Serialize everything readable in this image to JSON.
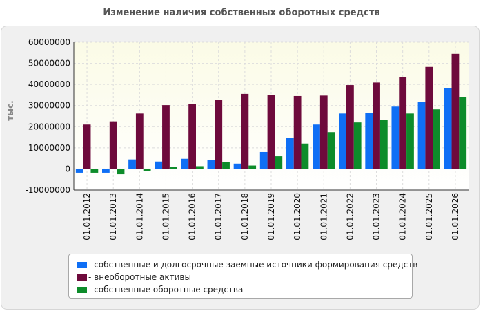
{
  "chart_data": {
    "type": "bar",
    "title": "Изменение наличия собственных оборотных средств",
    "ylabel": "тыс.",
    "xlabel": "",
    "ylim": [
      -10000000,
      60000000
    ],
    "yticks": [
      -10000000,
      0,
      10000000,
      20000000,
      30000000,
      40000000,
      50000000,
      60000000
    ],
    "grid": true,
    "legend_position": "bottom",
    "categories": [
      "01.01.2012",
      "01.01.2013",
      "01.01.2014",
      "01.01.2015",
      "01.01.2016",
      "01.01.2017",
      "01.01.2018",
      "01.01.2019",
      "01.01.2020",
      "01.01.2021",
      "01.01.2022",
      "01.01.2023",
      "01.01.2024",
      "01.01.2025",
      "01.01.2026"
    ],
    "series": [
      {
        "name": "- собственные и долгосрочные заемные источники формирования средств",
        "color": "#0f6ff5",
        "values": [
          -1800000,
          -1800000,
          4500000,
          3500000,
          4800000,
          4200000,
          2500000,
          8000000,
          14700000,
          21000000,
          26200000,
          26500000,
          29500000,
          31800000,
          38300000
        ]
      },
      {
        "name": "- внеоборотные активы",
        "color": "#6e0a3c",
        "values": [
          21000000,
          22500000,
          26200000,
          30200000,
          30700000,
          32800000,
          35500000,
          35000000,
          34500000,
          34700000,
          39700000,
          40900000,
          43500000,
          48300000,
          54500000
        ]
      },
      {
        "name": "- собственные оборотные средства",
        "color": "#0d8c2a",
        "values": [
          -1800000,
          -2500000,
          -1000000,
          1000000,
          1300000,
          3300000,
          1600000,
          6000000,
          12000000,
          17400000,
          22000000,
          23300000,
          26200000,
          28200000,
          34100000
        ]
      }
    ]
  }
}
